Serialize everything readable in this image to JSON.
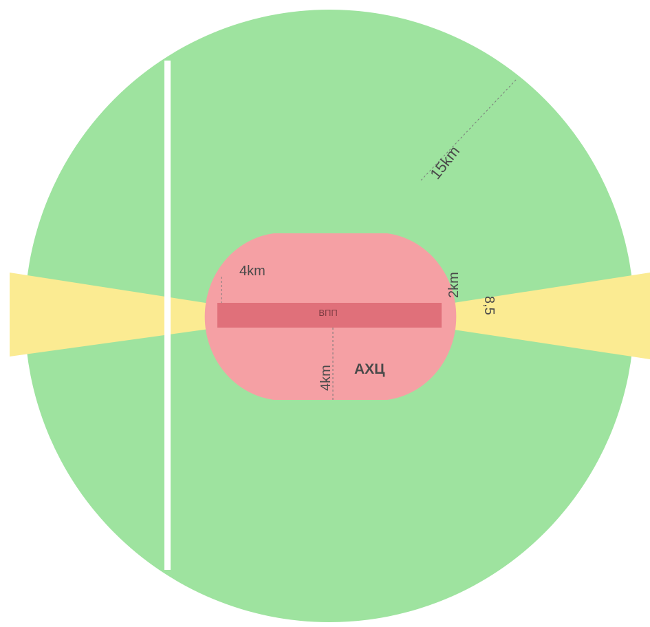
{
  "colors": {
    "background": "#ffffff",
    "outer_zone": "#9ee39f",
    "inner_zone": "#f5a0a4",
    "runway_band": "#e0707a",
    "approach_corridor": "#fbeb92",
    "divider_line": "#ffffff",
    "label_text": "#4a4a4a",
    "guide_line": "#7a7a7a"
  },
  "labels": {
    "outer_radius": "15km",
    "inner_half_width": "4km",
    "inner_half_height": "4km",
    "inner_cap_radius": "2km",
    "corridor_width": "8,5",
    "runway": "ВПП",
    "zone_name": "АХЦ"
  }
}
